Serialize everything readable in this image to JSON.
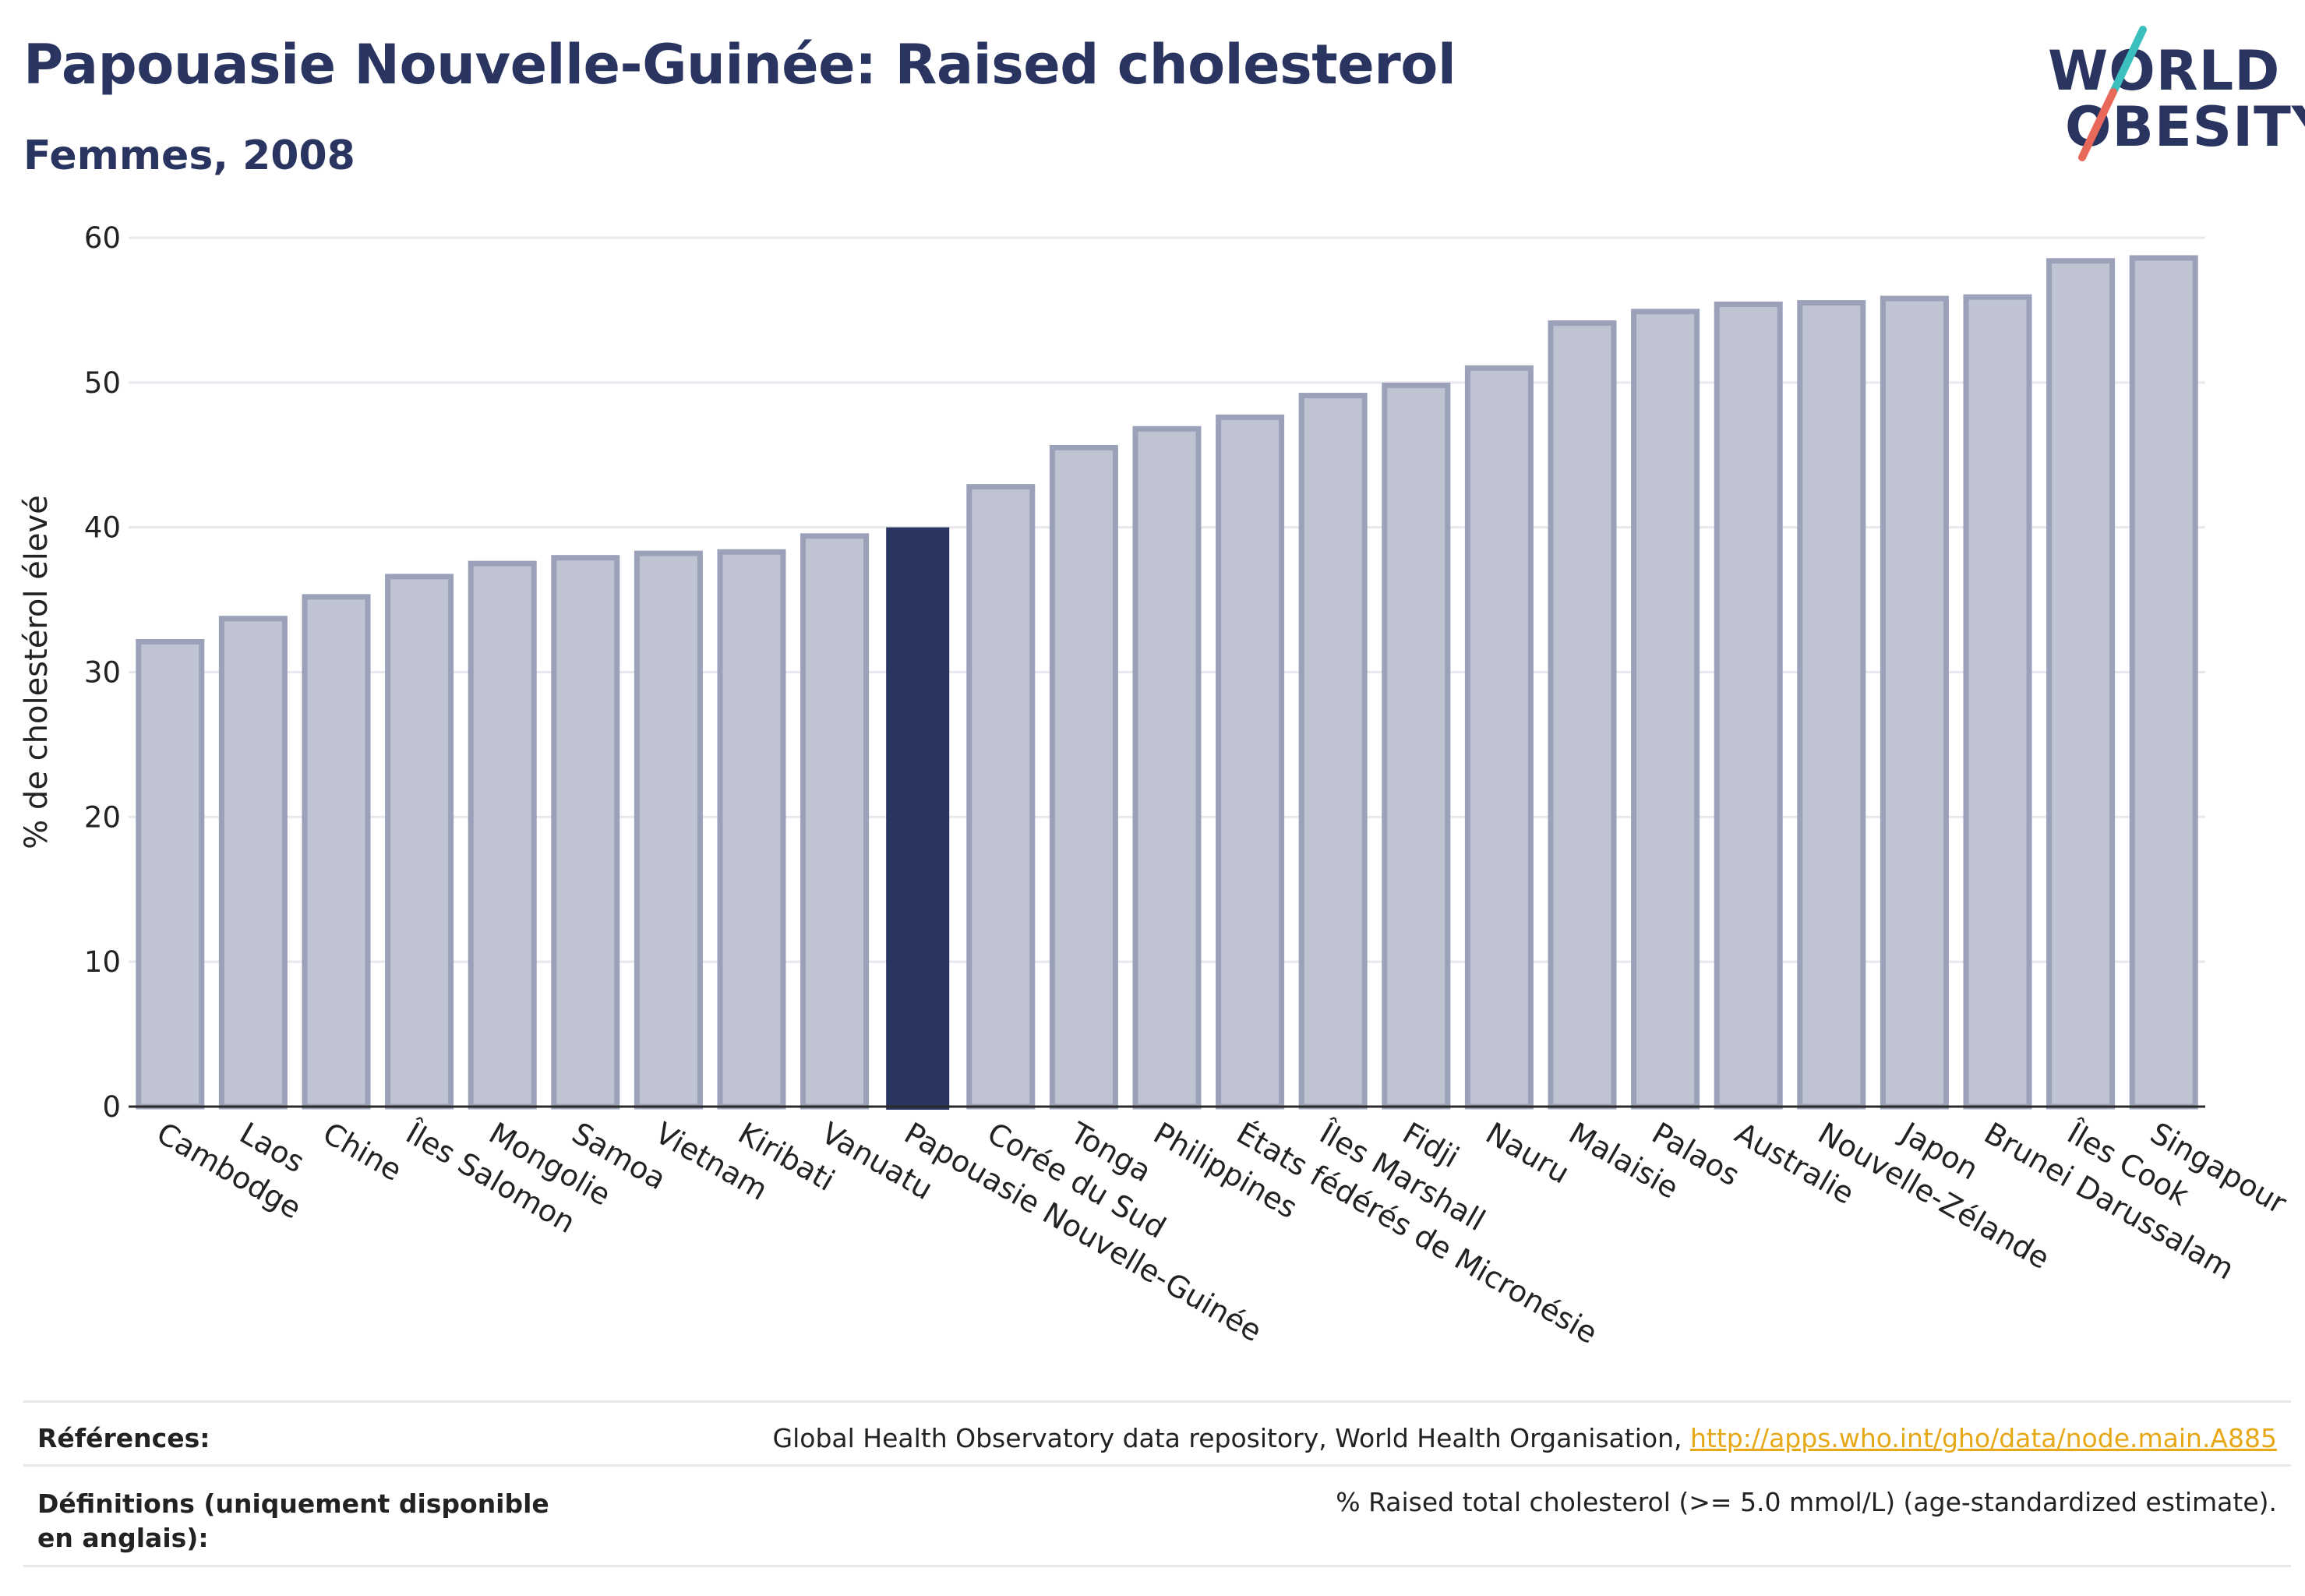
{
  "header": {
    "title": "Papouasie Nouvelle-Guinée: Raised cholesterol",
    "subtitle": "Femmes, 2008"
  },
  "logo": {
    "line1": "WORLD",
    "line2": "OBESITY"
  },
  "chart_data": {
    "type": "bar",
    "ylabel": "% de cholestérol élevé",
    "ylim": [
      0,
      60
    ],
    "yticks": [
      0,
      10,
      20,
      30,
      40,
      50,
      60
    ],
    "grid": true,
    "highlight": "Papouasie Nouvelle-Guinée",
    "colors": {
      "bar": "#c0c4d2",
      "bar_border": "#9aa1b8",
      "highlight": "#2a3460",
      "grid": "#e8e8ee",
      "axis": "#2a2a2a"
    },
    "categories": [
      "Cambodge",
      "Laos",
      "Chine",
      "Îles Salomon",
      "Mongolie",
      "Samoa",
      "Vietnam",
      "Kiribati",
      "Vanuatu",
      "Papouasie Nouvelle-Guinée",
      "Corée du Sud",
      "Tonga",
      "Philippines",
      "États fédérés de Micronésie",
      "Îles Marshall",
      "Fidji",
      "Nauru",
      "Malaisie",
      "Palaos",
      "Australie",
      "Nouvelle-Zélande",
      "Japon",
      "Brunei Darussalam",
      "Îles Cook",
      "Singapour"
    ],
    "values": [
      32.1,
      33.7,
      35.2,
      36.6,
      37.5,
      37.9,
      38.2,
      38.3,
      39.4,
      40.0,
      42.8,
      45.5,
      46.8,
      47.6,
      49.1,
      49.8,
      51.0,
      54.1,
      54.9,
      55.4,
      55.5,
      55.8,
      55.9,
      58.4,
      58.6
    ]
  },
  "footer": {
    "references_label": "Références:",
    "references_text": "Global Health Observatory data repository, World Health Organisation, ",
    "references_link": "http://apps.who.int/gho/data/node.main.A885",
    "definitions_label": "Définitions (uniquement disponible en anglais):",
    "definitions_text": "% Raised total cholesterol (>= 5.0 mmol/L) (age-standardized estimate)."
  }
}
